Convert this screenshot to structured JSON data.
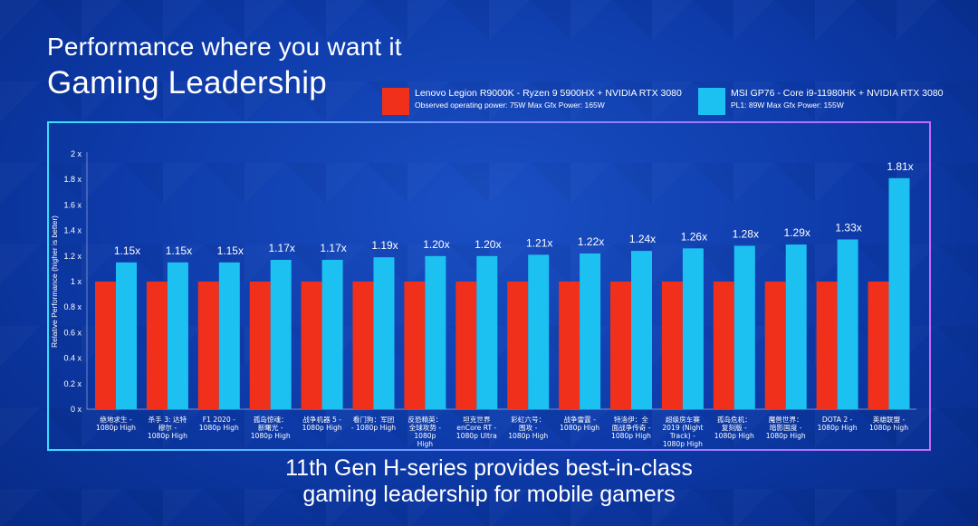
{
  "header": {
    "title_line1": "Performance where you want it",
    "title_line2": "Gaming Leadership"
  },
  "legend": [
    {
      "line1": "Lenovo Legion R9000K - Ryzen 9 5900HX + NVIDIA RTX 3080",
      "line2": "Observed operating power: 75W Max Gfx Power: 165W",
      "color": "#f0301a"
    },
    {
      "line1": "MSI GP76 - Core i9-11980HK + NVIDIA RTX 3080",
      "line2": "PL1: 89W Max Gfx Power: 155W",
      "color": "#1cc1f2"
    }
  ],
  "footer": {
    "line1": "11th Gen H-series provides best-in-class",
    "line2": "gaming leadership for mobile gamers"
  },
  "chart_data": {
    "type": "bar",
    "title": "Gaming Leadership",
    "xlabel": "",
    "ylabel": "Relative Performance (higher is better)",
    "ylim": [
      0,
      2
    ],
    "yticks": [
      "0 x",
      "0.2 x",
      "0.4 x",
      "0.6 x",
      "0.8 x",
      "1 x",
      "1.2 x",
      "1.4 x",
      "1.6 x",
      "1.8 x",
      "2 x"
    ],
    "ytick_values": [
      0,
      0.2,
      0.4,
      0.6,
      0.8,
      1,
      1.2,
      1.4,
      1.6,
      1.8,
      2
    ],
    "categories": [
      [
        "绝地求生 -",
        "1080p High"
      ],
      [
        "杀手 3: 达特",
        "穆尔 -",
        "1080p High"
      ],
      [
        "F1 2020 -",
        "1080p High"
      ],
      [
        "孤岛惊魂：",
        "新曙光 -",
        "1080p High"
      ],
      [
        "战争机器 5 -",
        "1080p High"
      ],
      [
        "看门狗：军团",
        "- 1080p High"
      ],
      [
        "反恐精英：",
        "全球攻势 -",
        "1080p",
        "High"
      ],
      [
        "坦克世界",
        "enCore RT -",
        "1080p Ultra"
      ],
      [
        "彩虹六号：",
        "围攻 -",
        "1080p High"
      ],
      [
        "战争雷霆 -",
        "1080p High"
      ],
      [
        "特洛伊：全",
        "面战争传奇 -",
        "1080p High"
      ],
      [
        "超级房车赛",
        "2019 (Night",
        "Track) -",
        "1080p High"
      ],
      [
        "孤岛危机：",
        "复刻版 -",
        "1080p High"
      ],
      [
        "魔兽世界：",
        "暗影国度 -",
        "1080p High"
      ],
      [
        "DOTA 2 -",
        "1080p High"
      ],
      [
        "英雄联盟 -",
        "1080p high"
      ]
    ],
    "series": [
      {
        "name": "Lenovo Legion R9000K - Ryzen 9 5900HX + NVIDIA RTX 3080",
        "color": "#f0301a",
        "values": [
          1,
          1,
          1,
          1,
          1,
          1,
          1,
          1,
          1,
          1,
          1,
          1,
          1,
          1,
          1,
          1
        ]
      },
      {
        "name": "MSI GP76 - Core i9-11980HK + NVIDIA RTX 3080",
        "color": "#1cc1f2",
        "values": [
          1.15,
          1.15,
          1.15,
          1.17,
          1.17,
          1.19,
          1.2,
          1.2,
          1.21,
          1.22,
          1.24,
          1.26,
          1.28,
          1.29,
          1.33,
          1.81
        ]
      }
    ],
    "data_labels": [
      "1.15x",
      "1.15x",
      "1.15x",
      "1.17x",
      "1.17x",
      "1.19x",
      "1.20x",
      "1.20x",
      "1.21x",
      "1.22x",
      "1.24x",
      "1.26x",
      "1.28x",
      "1.29x",
      "1.33x",
      "1.81x"
    ]
  }
}
